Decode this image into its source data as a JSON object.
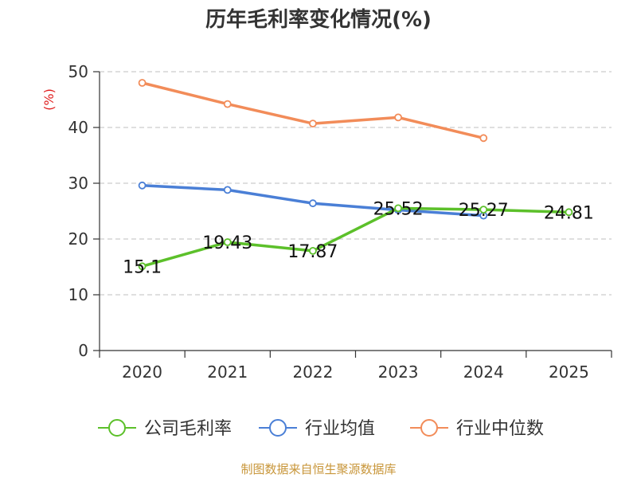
{
  "chart_data": {
    "type": "line",
    "title": "历年毛利率变化情况(%)",
    "ylabel": "(%)",
    "xlabel": "",
    "ylim": [
      0,
      50
    ],
    "yticks": [
      0,
      10,
      20,
      30,
      40,
      50
    ],
    "categories": [
      "2020",
      "2021",
      "2022",
      "2023",
      "2024",
      "2025"
    ],
    "grid": true,
    "legend_position": "bottom",
    "series": [
      {
        "name": "公司毛利率",
        "color": "#5cc02a",
        "values": [
          15.1,
          19.43,
          17.87,
          25.52,
          25.27,
          24.81
        ],
        "labels": [
          "15.1",
          "19.43",
          "17.87",
          "25.52",
          "25.27",
          "24.81"
        ]
      },
      {
        "name": "行业均值",
        "color": "#4a7fd6",
        "values": [
          29.6,
          28.8,
          26.4,
          25.2,
          24.2,
          null
        ]
      },
      {
        "name": "行业中位数",
        "color": "#f28c59",
        "values": [
          48.0,
          44.2,
          40.7,
          41.8,
          38.1,
          null
        ]
      }
    ]
  },
  "source": "制图数据来自恒生聚源数据库"
}
